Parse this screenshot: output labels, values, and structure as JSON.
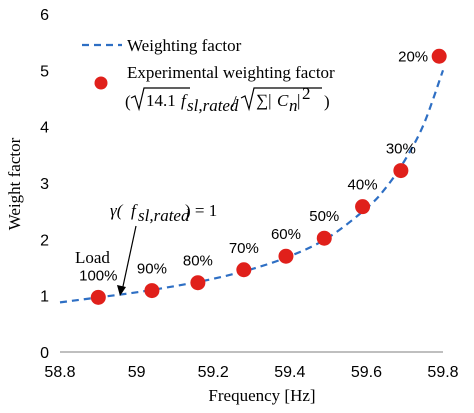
{
  "chart_data": {
    "type": "scatter",
    "xlabel": "Frequency [Hz]",
    "ylabel": "Weight factor",
    "xlim": [
      58.8,
      59.8
    ],
    "ylim": [
      0,
      6
    ],
    "x_ticks": [
      "58.8",
      "59",
      "59.2",
      "59.4",
      "59.6",
      "59.8"
    ],
    "y_ticks": [
      "0",
      "1",
      "2",
      "3",
      "4",
      "5",
      "6"
    ],
    "grid": false,
    "legend_position": "top-left",
    "colors": {
      "curve": "#2e6fc4",
      "marker": "#e0201b"
    },
    "series": [
      {
        "name": "Weighting factor",
        "kind": "dashed-line",
        "x": [
          58.8,
          58.9,
          59.0,
          59.1,
          59.2,
          59.3,
          59.4,
          59.5,
          59.6,
          59.65,
          59.7,
          59.75,
          59.8
        ],
        "y": [
          0.88,
          0.97,
          1.06,
          1.17,
          1.3,
          1.47,
          1.7,
          2.03,
          2.55,
          2.91,
          3.4,
          4.05,
          5.0
        ]
      },
      {
        "name": "Experimental weighting factor",
        "kind": "markers",
        "x": [
          58.9,
          59.04,
          59.16,
          59.28,
          59.39,
          59.49,
          59.59,
          59.69,
          59.79
        ],
        "y": [
          0.97,
          1.09,
          1.23,
          1.46,
          1.7,
          2.02,
          2.58,
          3.22,
          5.25
        ],
        "labels": [
          "100%",
          "90%",
          "80%",
          "70%",
          "60%",
          "50%",
          "40%",
          "30%",
          "20%"
        ]
      }
    ],
    "legend": {
      "line_label": "Weighting factor",
      "marker_label": "Experimental weighting factor"
    },
    "annotations": {
      "load": "Load",
      "gamma_prefix": "γ(",
      "gamma_sub": "sl,rated",
      "gamma_suffix": ") = 1"
    }
  }
}
